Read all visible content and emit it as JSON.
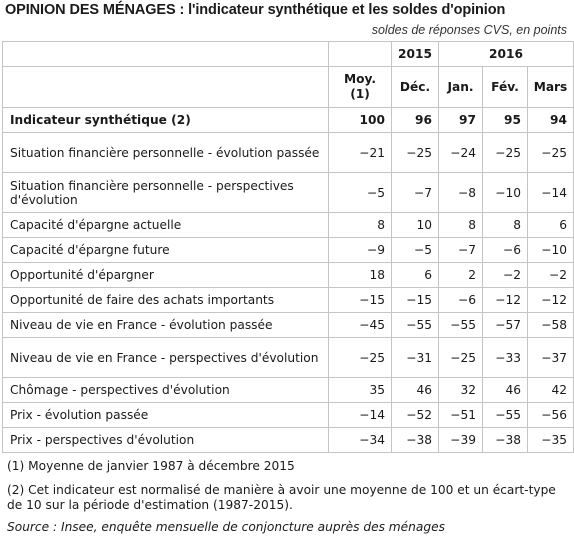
{
  "title": "OPINION DES MÉNAGES : l'indicateur synthétique et les soldes d'opinion",
  "subtitle": "soldes de réponses CVS, en points",
  "header": {
    "year_2015": "2015",
    "year_2016": "2016",
    "col_avg": "Moy. (1)",
    "col_dec": "Déc.",
    "col_jan": "Jan.",
    "col_feb": "Fév.",
    "col_mar": "Mars"
  },
  "rows": [
    {
      "label": "Indicateur synthétique (2)",
      "values": [
        "100",
        "96",
        "97",
        "95",
        "94"
      ]
    },
    {
      "label": "Situation financière personnelle - évolution passée",
      "values": [
        "−21",
        "−25",
        "−24",
        "−25",
        "−25"
      ]
    },
    {
      "label": "Situation financière personnelle - perspectives d'évolution",
      "values": [
        "−5",
        "−7",
        "−8",
        "−10",
        "−14"
      ]
    },
    {
      "label": "Capacité d'épargne actuelle",
      "values": [
        "8",
        "10",
        "8",
        "8",
        "6"
      ]
    },
    {
      "label": "Capacité d'épargne future",
      "values": [
        "−9",
        "−5",
        "−7",
        "−6",
        "−10"
      ]
    },
    {
      "label": "Opportunité d'épargner",
      "values": [
        "18",
        "6",
        "2",
        "−2",
        "−2"
      ]
    },
    {
      "label": "Opportunité de faire des achats importants",
      "values": [
        "−15",
        "−15",
        "−6",
        "−12",
        "−12"
      ]
    },
    {
      "label": "Niveau de vie en France - évolution passée",
      "values": [
        "−45",
        "−55",
        "−55",
        "−57",
        "−58"
      ]
    },
    {
      "label": "Niveau de vie en France - perspectives d'évolution",
      "values": [
        "−25",
        "−31",
        "−25",
        "−33",
        "−37"
      ]
    },
    {
      "label": "Chômage - perspectives d'évolution",
      "values": [
        "35",
        "46",
        "32",
        "46",
        "42"
      ]
    },
    {
      "label": "Prix - évolution passée",
      "values": [
        "−14",
        "−52",
        "−51",
        "−55",
        "−56"
      ]
    },
    {
      "label": "Prix - perspectives d'évolution",
      "values": [
        "−34",
        "−38",
        "−39",
        "−38",
        "−35"
      ]
    }
  ],
  "notes": {
    "note1": "(1) Moyenne de janvier 1987 à décembre 2015",
    "note2": "(2) Cet indicateur est normalisé de manière à avoir une moyenne de 100 et un écart-type de 10 sur la période d'estimation (1987-2015).",
    "source": "Source : Insee, enquête mensuelle de conjoncture auprès des ménages"
  }
}
